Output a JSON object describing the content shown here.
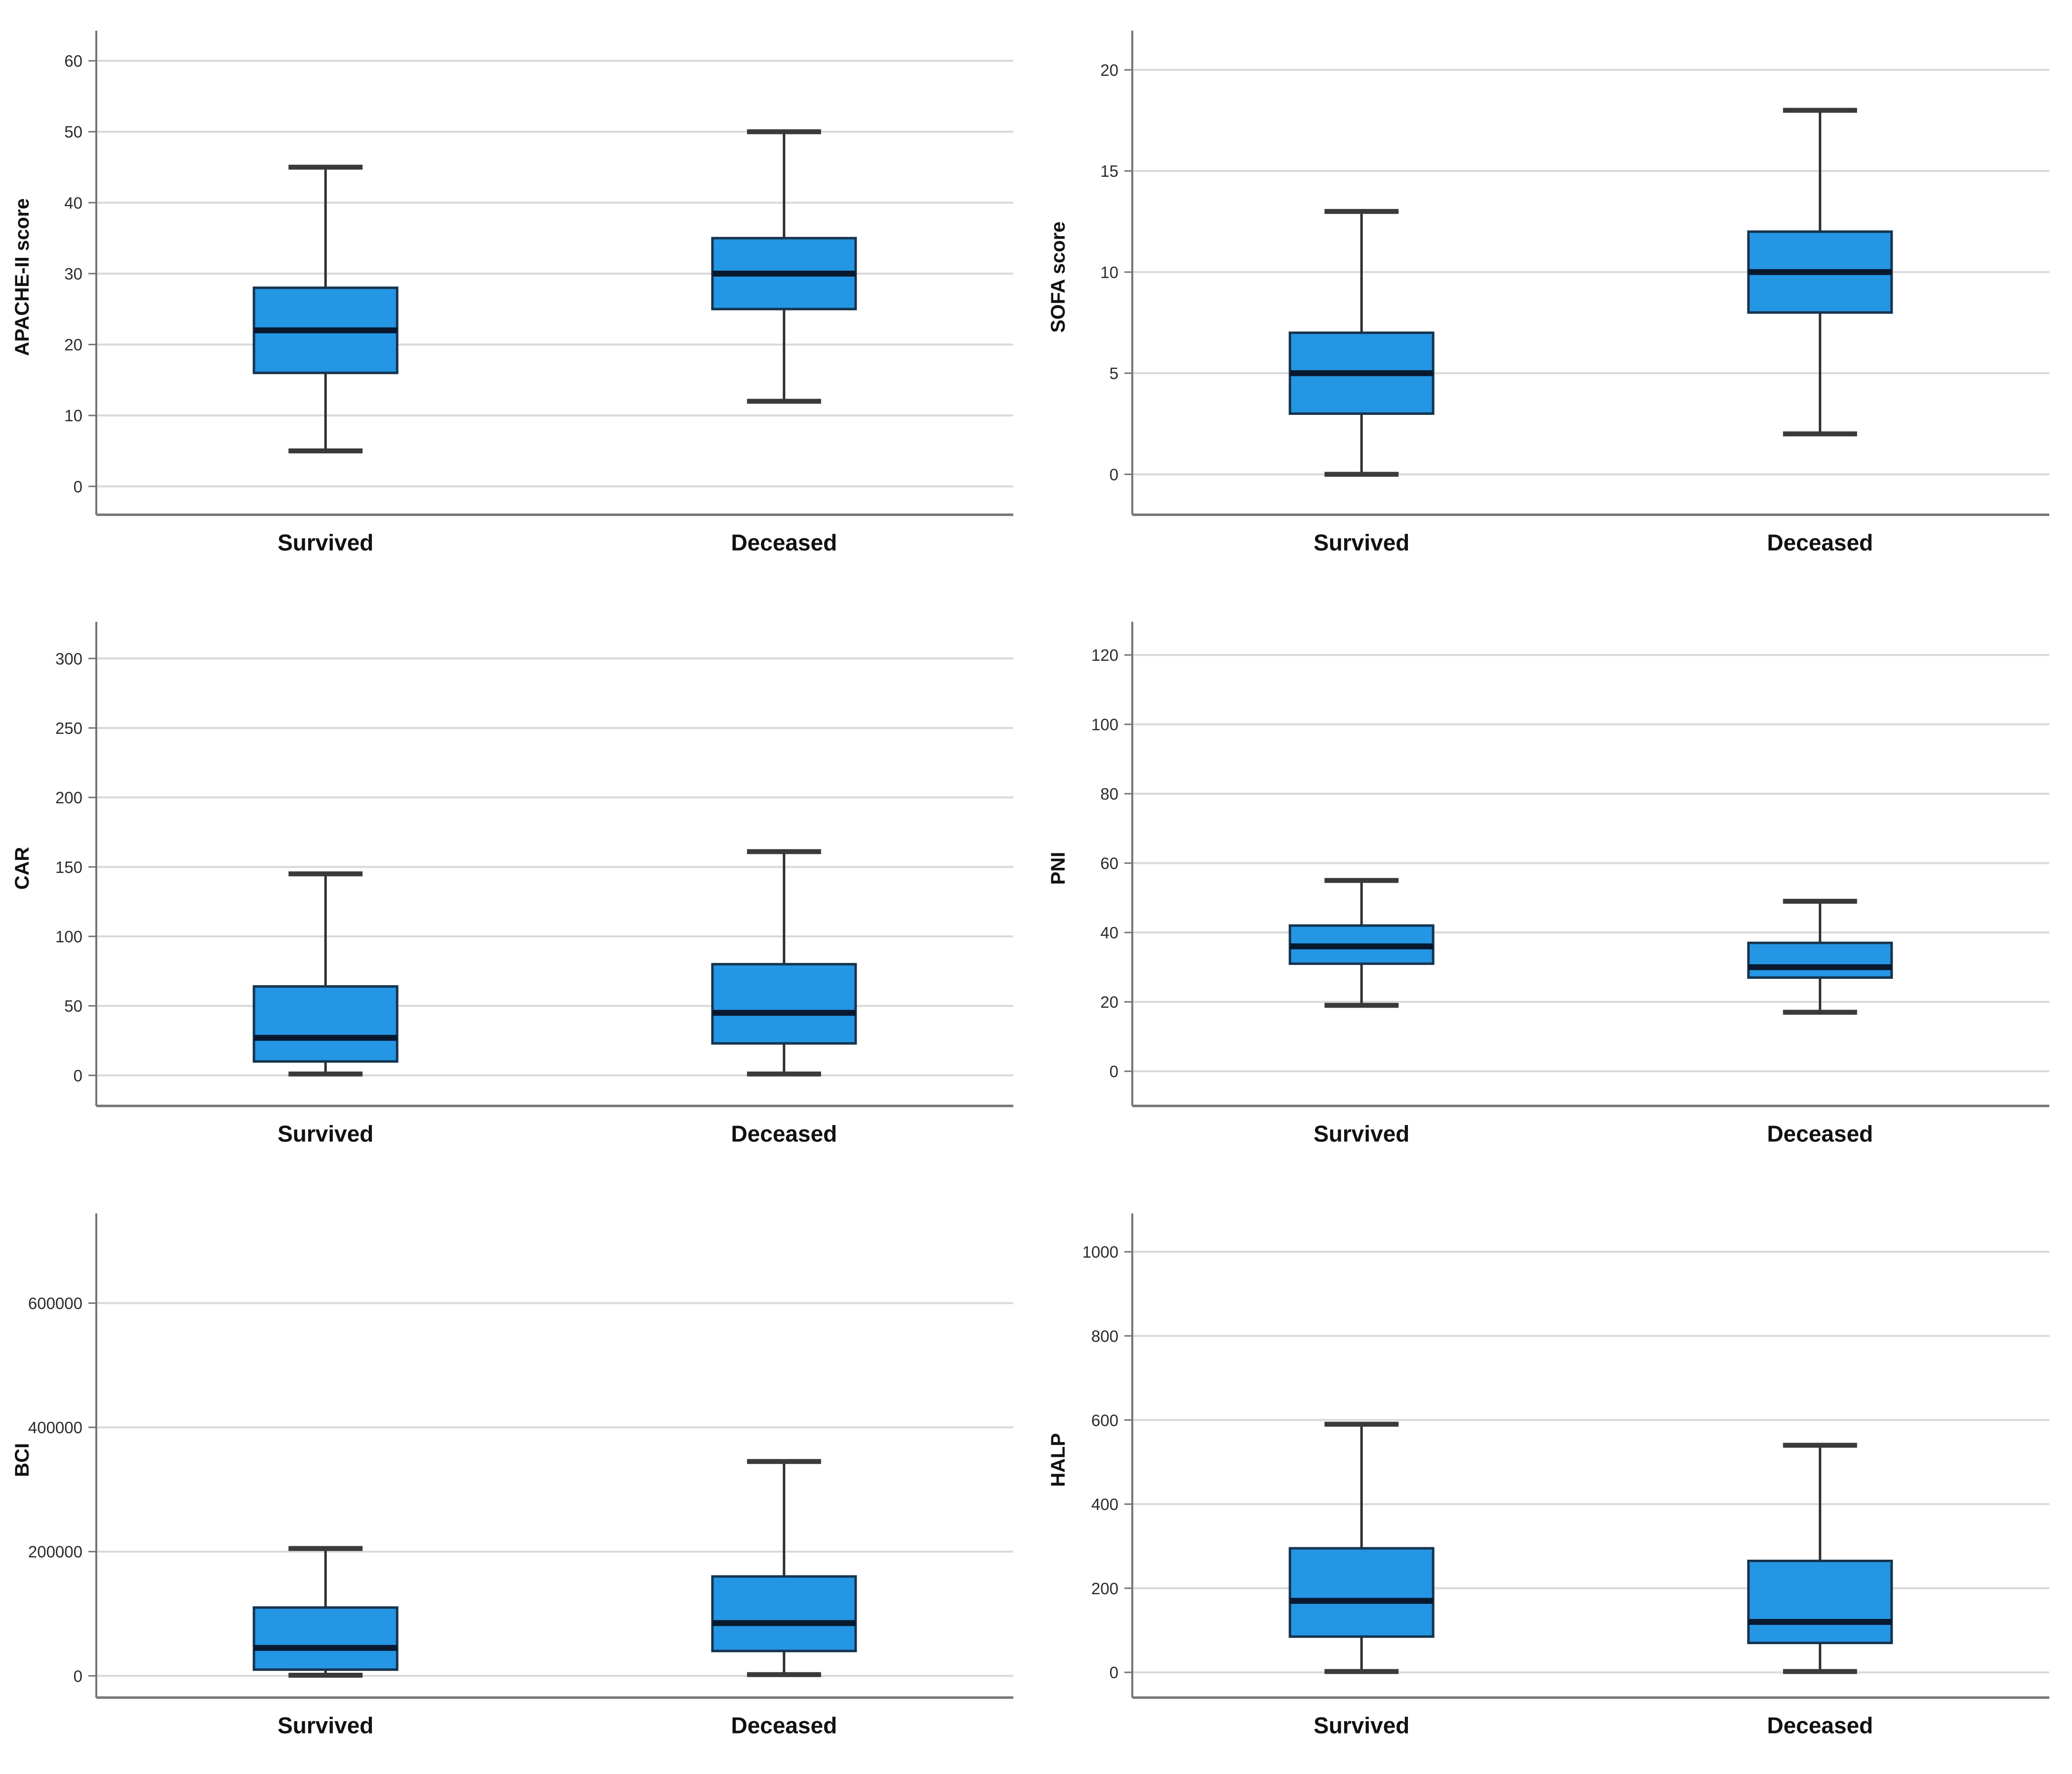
{
  "page": {
    "background": "#ffffff",
    "description": "Grid of six box plots comparing Survived vs Deceased groups"
  },
  "colors": {
    "box_fill": "#2496E4",
    "box_border": "#16344F",
    "median": "#08192F",
    "whisker": "#2F2F2F",
    "whisker_cap": "#3A3A3A",
    "gridline": "#D9D9D9",
    "axis": "#757575",
    "tick_text": "#2B2B2B",
    "label_text": "#111111"
  },
  "chart_data": [
    {
      "type": "box",
      "id": "apache-ii-score",
      "title": "",
      "ylabel": "APACHE-II score",
      "xlabel": "",
      "categories": [
        "Survived",
        "Deceased"
      ],
      "yticks": [
        0,
        10,
        20,
        30,
        40,
        50,
        60
      ],
      "ylim": [
        -4,
        63
      ],
      "grid": true,
      "legend": "none",
      "series": [
        {
          "name": "Survived",
          "whisker_low": 5,
          "q1": 16,
          "median": 22,
          "q3": 28,
          "whisker_high": 45
        },
        {
          "name": "Deceased",
          "whisker_low": 12,
          "q1": 25,
          "median": 30,
          "q3": 35,
          "whisker_high": 50
        }
      ]
    },
    {
      "type": "box",
      "id": "sofa-score",
      "title": "",
      "ylabel": "SOFA score",
      "xlabel": "",
      "categories": [
        "Survived",
        "Deceased"
      ],
      "yticks": [
        0,
        5,
        10,
        15,
        20
      ],
      "ylim": [
        -2,
        21.5
      ],
      "grid": true,
      "legend": "none",
      "series": [
        {
          "name": "Survived",
          "whisker_low": 0,
          "q1": 3,
          "median": 5,
          "q3": 7,
          "whisker_high": 13
        },
        {
          "name": "Deceased",
          "whisker_low": 2,
          "q1": 8,
          "median": 10,
          "q3": 12,
          "whisker_high": 18
        }
      ]
    },
    {
      "type": "box",
      "id": "car",
      "title": "",
      "ylabel": "CAR",
      "xlabel": "",
      "categories": [
        "Survived",
        "Deceased"
      ],
      "yticks": [
        0,
        50,
        100,
        150,
        200,
        250,
        300
      ],
      "ylim": [
        -22,
        320
      ],
      "grid": true,
      "legend": "none",
      "series": [
        {
          "name": "Survived",
          "whisker_low": 1,
          "q1": 10,
          "median": 27,
          "q3": 64,
          "whisker_high": 145
        },
        {
          "name": "Deceased",
          "whisker_low": 1,
          "q1": 23,
          "median": 45,
          "q3": 80,
          "whisker_high": 161
        }
      ]
    },
    {
      "type": "box",
      "id": "pni",
      "title": "",
      "ylabel": "PNI",
      "xlabel": "",
      "categories": [
        "Survived",
        "Deceased"
      ],
      "yticks": [
        0,
        20,
        40,
        60,
        80,
        100,
        120
      ],
      "ylim": [
        -10,
        127
      ],
      "grid": true,
      "legend": "none",
      "series": [
        {
          "name": "Survived",
          "whisker_low": 19,
          "q1": 31,
          "median": 36,
          "q3": 42,
          "whisker_high": 55
        },
        {
          "name": "Deceased",
          "whisker_low": 17,
          "q1": 27,
          "median": 30,
          "q3": 37,
          "whisker_high": 49
        }
      ]
    },
    {
      "type": "box",
      "id": "bci",
      "title": "",
      "ylabel": "BCI",
      "xlabel": "",
      "categories": [
        "Survived",
        "Deceased"
      ],
      "yticks": [
        0,
        200000,
        400000,
        600000
      ],
      "ylim": [
        -35000,
        730000
      ],
      "grid": true,
      "legend": "none",
      "series": [
        {
          "name": "Survived",
          "whisker_low": 1000,
          "q1": 10000,
          "median": 45000,
          "q3": 110000,
          "whisker_high": 205000
        },
        {
          "name": "Deceased",
          "whisker_low": 2000,
          "q1": 40000,
          "median": 85000,
          "q3": 160000,
          "whisker_high": 345000
        }
      ]
    },
    {
      "type": "box",
      "id": "halp",
      "title": "",
      "ylabel": "HALP",
      "xlabel": "",
      "categories": [
        "Survived",
        "Deceased"
      ],
      "yticks": [
        0,
        200,
        400,
        600,
        800,
        1000
      ],
      "ylim": [
        -60,
        1070
      ],
      "grid": true,
      "legend": "none",
      "series": [
        {
          "name": "Survived",
          "whisker_low": 2,
          "q1": 85,
          "median": 170,
          "q3": 295,
          "whisker_high": 590
        },
        {
          "name": "Deceased",
          "whisker_low": 2,
          "q1": 70,
          "median": 120,
          "q3": 265,
          "whisker_high": 540
        }
      ]
    }
  ]
}
